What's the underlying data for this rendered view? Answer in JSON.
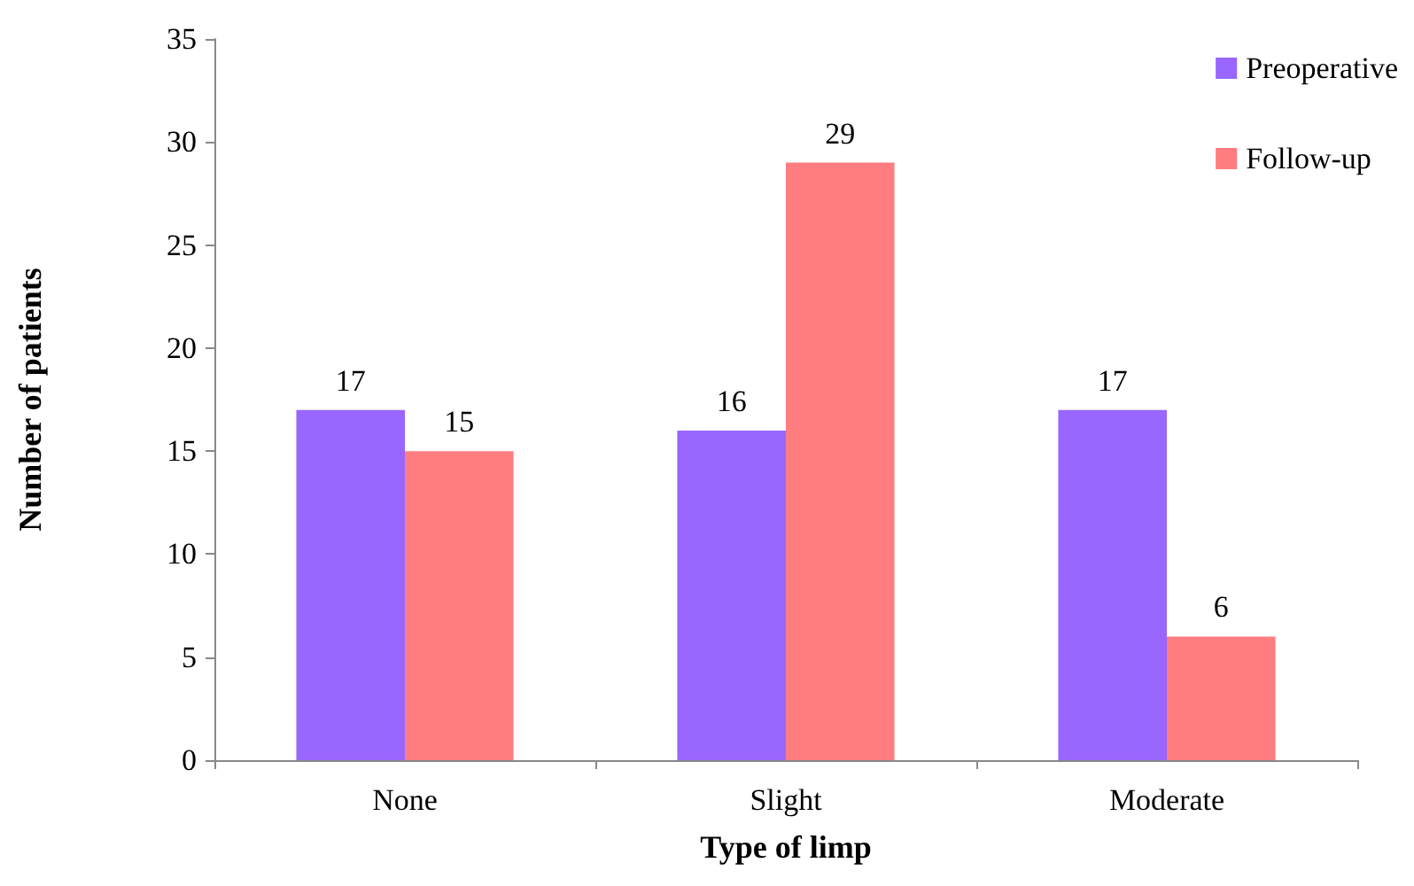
{
  "chart_data": {
    "type": "bar",
    "xlabel": "Type of limp",
    "ylabel": "Number of patients",
    "categories": [
      "None",
      "Slight",
      "Moderate"
    ],
    "series": [
      {
        "name": "Preoperative",
        "color": "#9966ff",
        "values": [
          17,
          16,
          17
        ]
      },
      {
        "name": "Follow-up",
        "color": "#ff7c80",
        "values": [
          15,
          29,
          6
        ]
      }
    ],
    "ylim": [
      0,
      35
    ],
    "yticks": [
      0,
      5,
      10,
      15,
      20,
      25,
      30,
      35
    ],
    "grid": false,
    "legend": "top right",
    "data_labels": true
  }
}
